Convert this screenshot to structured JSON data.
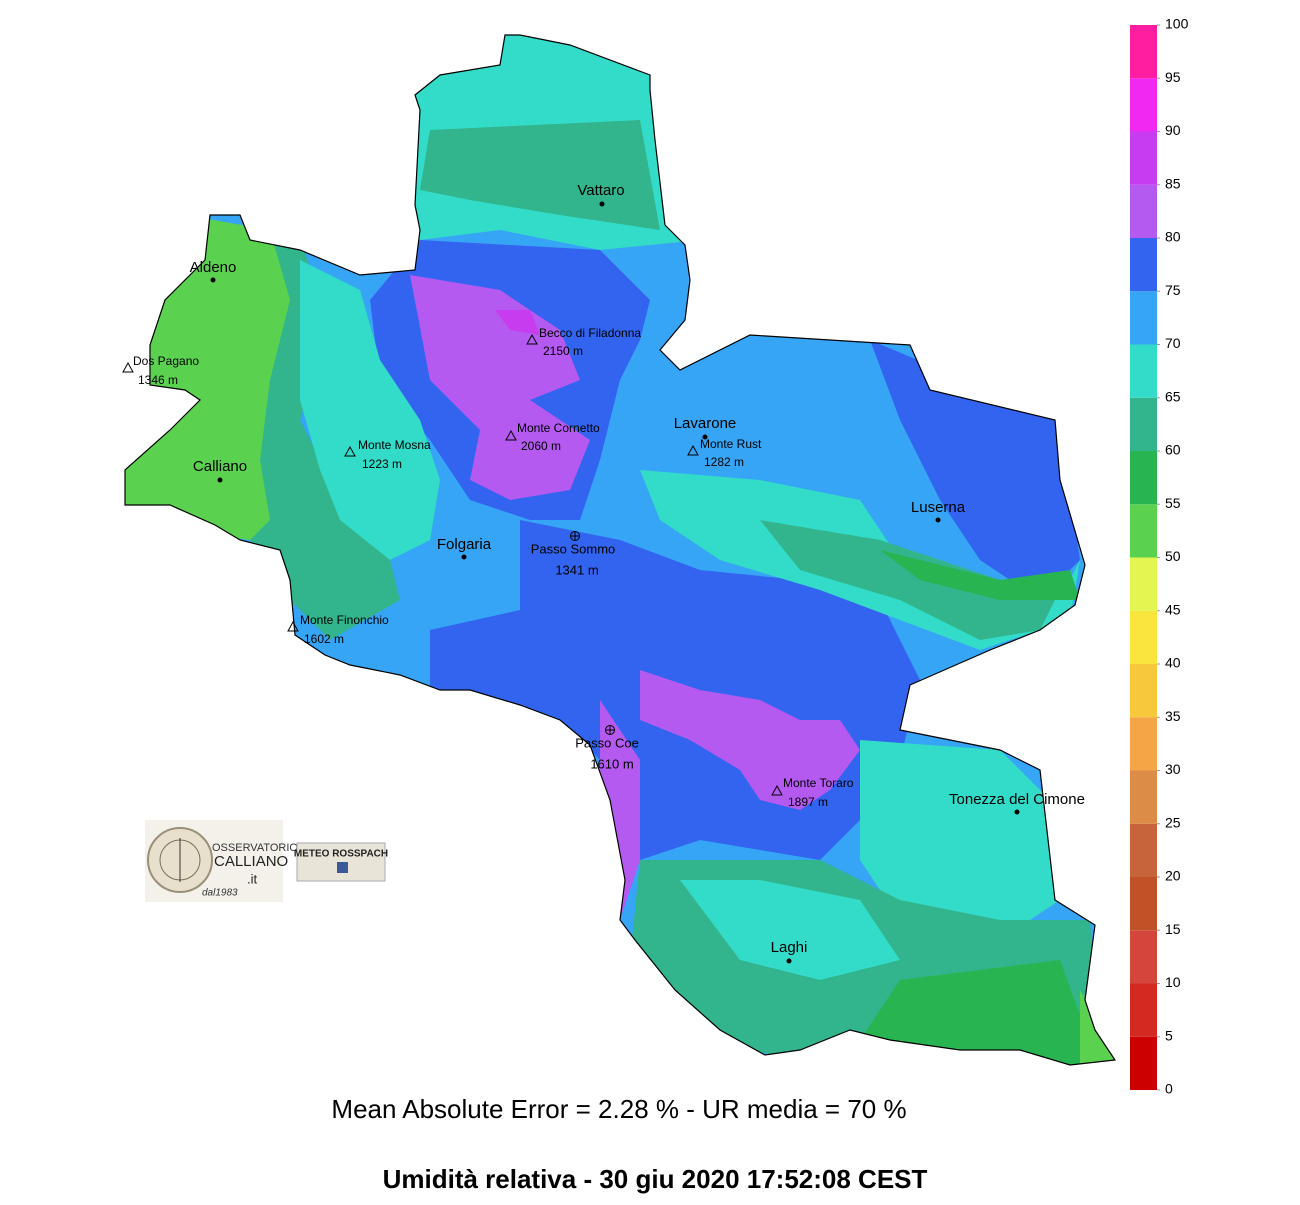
{
  "map": {
    "places": [
      {
        "name": "Vattaro",
        "marker": "dot"
      },
      {
        "name": "Aldeno",
        "marker": "dot"
      },
      {
        "name": "Dos Pagano",
        "elevation": "1346 m",
        "marker": "triangle"
      },
      {
        "name": "Calliano",
        "marker": "dot"
      },
      {
        "name": "Becco di Filadonna",
        "elevation": "2150 m",
        "marker": "triangle"
      },
      {
        "name": "Monte Mosna",
        "elevation": "1223 m",
        "marker": "triangle"
      },
      {
        "name": "Monte Cornetto",
        "elevation": "2060 m",
        "marker": "triangle"
      },
      {
        "name": "Lavarone",
        "marker": "dot"
      },
      {
        "name": "Monte Rust",
        "elevation": "1282 m",
        "marker": "triangle"
      },
      {
        "name": "Luserna",
        "marker": "dot"
      },
      {
        "name": "Folgaria",
        "marker": "dot"
      },
      {
        "name": "Passo Sommo",
        "elevation": "1341 m",
        "marker": "cross"
      },
      {
        "name": "Monte Finonchio",
        "elevation": "1602 m",
        "marker": "triangle"
      },
      {
        "name": "Passo Coe",
        "elevation": "1610 m",
        "marker": "cross"
      },
      {
        "name": "Monte Toraro",
        "elevation": "1897 m",
        "marker": "triangle"
      },
      {
        "name": "Tonezza del Cimone",
        "marker": "dot"
      },
      {
        "name": "Laghi",
        "marker": "dot"
      }
    ],
    "colorbar": {
      "ticks": [
        0,
        5,
        10,
        15,
        20,
        25,
        30,
        35,
        40,
        45,
        50,
        55,
        60,
        65,
        70,
        75,
        80,
        85,
        90,
        95,
        100
      ],
      "colors": [
        "#cc0000",
        "#d22a20",
        "#d4463c",
        "#c05228",
        "#c8643c",
        "#dc8c46",
        "#f5a546",
        "#f8c83c",
        "#f8e63c",
        "#e2f550",
        "#5ad250",
        "#28b450",
        "#32b48c",
        "#32dcc8",
        "#37a5f5",
        "#3264f0",
        "#b45af0",
        "#c83cf0",
        "#f028f0",
        "#ff1ea0"
      ]
    },
    "stats": "Mean Absolute Error = 2.28 %  -  UR media = 70 %",
    "title": "Umidità relativa  -  30 giu 2020 17:52:08  CEST",
    "logos": {
      "observatory": [
        "OSSERVATORIO",
        "CALLIANO",
        ".it",
        "dal1983"
      ],
      "meteo": "METEO ROSSPACH"
    }
  }
}
